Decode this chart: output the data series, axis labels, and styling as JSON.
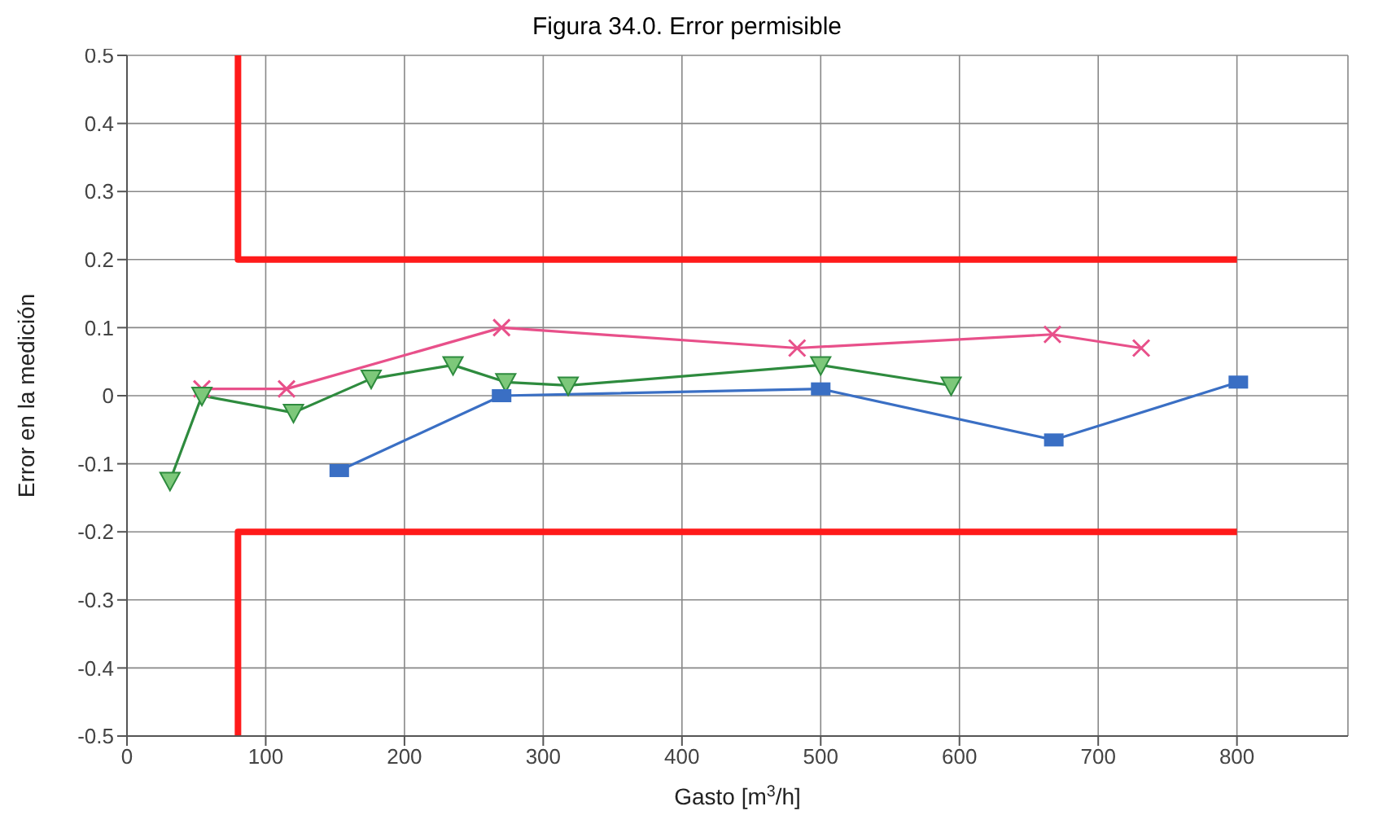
{
  "chart_data": {
    "type": "line",
    "title": "Figura 34.0. Error permisible",
    "xlabel": "Gasto [m$^{3}$/h]",
    "ylabel": "Error en la medición",
    "xlim": [
      0,
      880
    ],
    "xticks": [
      0,
      100,
      200,
      300,
      400,
      500,
      600,
      700,
      800
    ],
    "ylim": [
      -0.5,
      0.5
    ],
    "yticks": [
      -0.5,
      -0.4,
      -0.3,
      -0.2,
      -0.1,
      0,
      0.1,
      0.2,
      0.3,
      0.4,
      0.5
    ],
    "grid": true,
    "line_style": "solid",
    "series": [
      {
        "color": "#ff1a1a",
        "marker": "none",
        "x": [
          80,
          80,
          800
        ],
        "values": [
          0.5,
          0.2,
          0.2
        ]
      },
      {
        "color": "#ff1a1a",
        "marker": "none",
        "x": [
          80,
          80,
          800
        ],
        "values": [
          -0.5,
          -0.2,
          -0.2
        ]
      },
      {
        "color": "#e8508a",
        "marker": "cross",
        "x": [
          54,
          115,
          270,
          483,
          667,
          731
        ],
        "values": [
          0.01,
          0.01,
          0.1,
          0.07,
          0.09,
          0.07
        ]
      },
      {
        "color": "#2e8b3e",
        "marker": "triangle",
        "x": [
          31,
          54,
          120,
          176,
          235,
          273,
          318,
          500,
          594
        ],
        "values": [
          -0.125,
          0,
          -0.025,
          0.025,
          0.045,
          0.02,
          0.015,
          0.045,
          0.015
        ]
      },
      {
        "color": "#3a6fc4",
        "marker": "square",
        "x": [
          153,
          270,
          500,
          668,
          801
        ],
        "values": [
          -0.11,
          0,
          0.01,
          -0.065,
          0.02
        ]
      }
    ]
  }
}
